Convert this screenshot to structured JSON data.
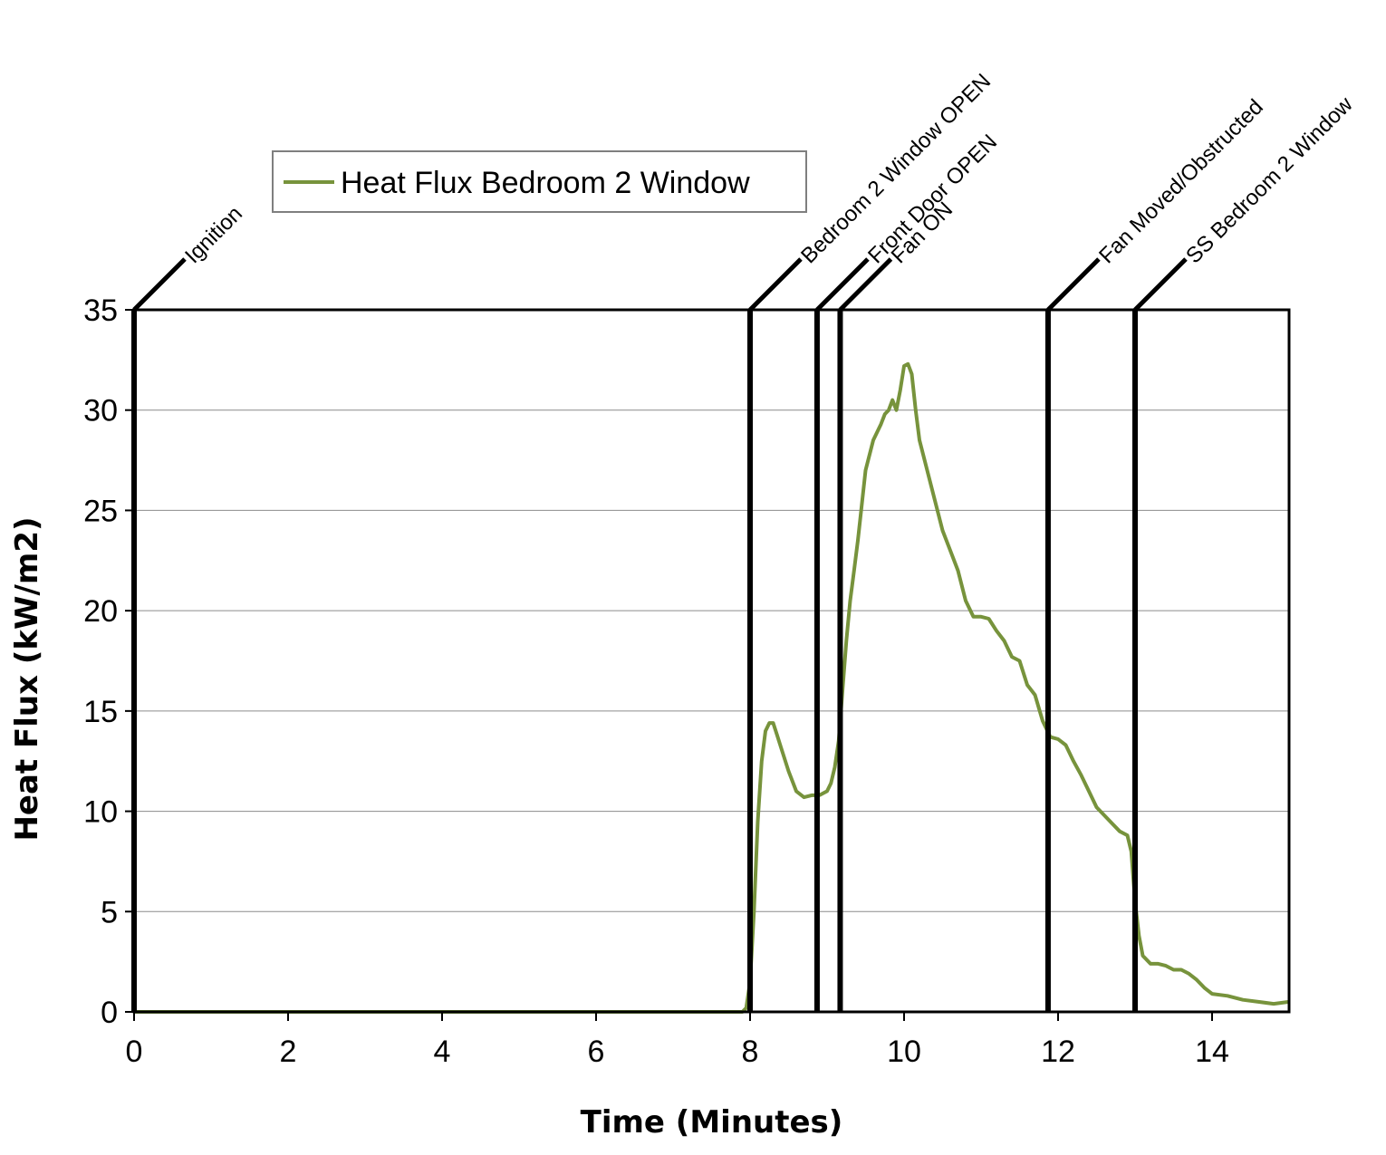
{
  "chart_data": {
    "type": "line",
    "xlabel": "Time (Minutes)",
    "ylabel": "Heat Flux (kW/m2)",
    "xlim": [
      0,
      15
    ],
    "ylim": [
      0,
      35
    ],
    "xticks": [
      0,
      2,
      4,
      6,
      8,
      10,
      12,
      14
    ],
    "yticks": [
      0,
      5,
      10,
      15,
      20,
      25,
      30,
      35
    ],
    "grid": "horizontal",
    "legend": {
      "position": "top-left",
      "entries": [
        "Heat Flux Bedroom 2 Window"
      ]
    },
    "series": [
      {
        "name": "Heat Flux Bedroom 2 Window",
        "color": "#77933C",
        "x": [
          0,
          0.5,
          1,
          2,
          3,
          4,
          5,
          6,
          7,
          7.9,
          7.95,
          8.0,
          8.05,
          8.1,
          8.15,
          8.2,
          8.25,
          8.3,
          8.35,
          8.4,
          8.5,
          8.6,
          8.7,
          8.8,
          8.9,
          9.0,
          9.05,
          9.1,
          9.15,
          9.2,
          9.25,
          9.3,
          9.35,
          9.4,
          9.5,
          9.6,
          9.7,
          9.75,
          9.8,
          9.85,
          9.9,
          9.95,
          10.0,
          10.05,
          10.1,
          10.15,
          10.2,
          10.3,
          10.4,
          10.5,
          10.6,
          10.7,
          10.8,
          10.9,
          11.0,
          11.1,
          11.2,
          11.3,
          11.4,
          11.5,
          11.6,
          11.7,
          11.8,
          11.9,
          12.0,
          12.1,
          12.2,
          12.3,
          12.4,
          12.5,
          12.6,
          12.7,
          12.8,
          12.9,
          12.95,
          13.0,
          13.05,
          13.1,
          13.2,
          13.3,
          13.4,
          13.5,
          13.6,
          13.7,
          13.8,
          13.9,
          14.0,
          14.2,
          14.4,
          14.6,
          14.8,
          15.0
        ],
        "values": [
          0.0,
          0.0,
          0.0,
          0.0,
          0.0,
          0.0,
          0.0,
          0.0,
          0.0,
          0.0,
          0.2,
          1.5,
          5.0,
          9.5,
          12.5,
          14.0,
          14.4,
          14.4,
          13.8,
          13.2,
          12.0,
          11.0,
          10.7,
          10.8,
          10.8,
          11.0,
          11.4,
          12.2,
          13.5,
          16.0,
          18.5,
          20.5,
          22.0,
          23.5,
          27.0,
          28.5,
          29.3,
          29.8,
          30.0,
          30.5,
          30.0,
          31.0,
          32.2,
          32.3,
          31.8,
          30.0,
          28.5,
          27.0,
          25.5,
          24.0,
          23.0,
          22.0,
          20.5,
          19.7,
          19.7,
          19.6,
          19.0,
          18.5,
          17.7,
          17.5,
          16.3,
          15.8,
          14.5,
          13.7,
          13.6,
          13.3,
          12.5,
          11.8,
          11.0,
          10.2,
          9.8,
          9.4,
          9.0,
          8.8,
          8.0,
          5.5,
          3.8,
          2.8,
          2.4,
          2.4,
          2.3,
          2.1,
          2.1,
          1.9,
          1.6,
          1.2,
          0.9,
          0.8,
          0.6,
          0.5,
          0.4,
          0.5
        ]
      }
    ],
    "event_markers": [
      {
        "x": 0.0,
        "label": "Ignition"
      },
      {
        "x": 8.0,
        "label": "Bedroom 2 Window OPEN"
      },
      {
        "x": 8.87,
        "label": "Front Door OPEN"
      },
      {
        "x": 9.17,
        "label": "Fan ON"
      },
      {
        "x": 11.87,
        "label": "Fan Moved/Obstructed"
      },
      {
        "x": 13.0,
        "label": "SS Bedroom 2 Window"
      }
    ]
  }
}
